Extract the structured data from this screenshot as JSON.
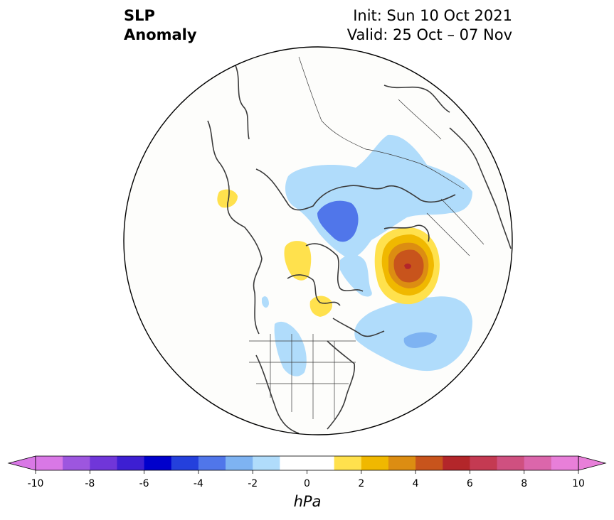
{
  "title": {
    "left_line1": "SLP",
    "left_line2": "Anomaly",
    "right_line1": "Init: Sun 10 Oct 2021",
    "right_line2": "Valid: 25 Oct – 07 Nov"
  },
  "colorbar": {
    "units": "hPa",
    "min": -10,
    "max": 10,
    "step": 1,
    "tick_labels": [
      "-10",
      "-8",
      "-6",
      "-4",
      "-2",
      "0",
      "2",
      "4",
      "6",
      "8",
      "10"
    ],
    "colors": [
      "#d978e6",
      "#9d56df",
      "#7036d9",
      "#3d1fd2",
      "#0000cc",
      "#2440dc",
      "#5076ea",
      "#7eb3f2",
      "#b0dcfb",
      "#ffffff",
      "#ffffff",
      "#ffe14d",
      "#f0b800",
      "#dc8d12",
      "#c8541c",
      "#b3262a",
      "#c43a52",
      "#cf5080",
      "#db66ab",
      "#e87fd9"
    ]
  },
  "map": {
    "projection": "north-polar-stereographic",
    "anomalies": [
      {
        "name": "negative-anomaly-eurasia-arctic",
        "level": -2,
        "color": "#b0dcfb"
      },
      {
        "name": "negative-anomaly-barents-core",
        "level": -4,
        "color": "#5076ea"
      },
      {
        "name": "negative-anomaly-north-atlantic",
        "level": -2,
        "color": "#b0dcfb"
      },
      {
        "name": "negative-anomaly-north-atlantic-core",
        "level": -3,
        "color": "#7eb3f2"
      },
      {
        "name": "negative-anomaly-eastern-north-america",
        "level": -2,
        "color": "#b0dcfb"
      },
      {
        "name": "positive-anomaly-alaska-bering",
        "level": 1,
        "color": "#ffe14d"
      },
      {
        "name": "positive-anomaly-arctic-archipelago",
        "level": 1,
        "color": "#ffe14d"
      },
      {
        "name": "positive-anomaly-hudson-bay",
        "level": 1,
        "color": "#ffe14d"
      },
      {
        "name": "positive-anomaly-greenland-east",
        "level": 6,
        "color": "#c8541c"
      }
    ]
  }
}
